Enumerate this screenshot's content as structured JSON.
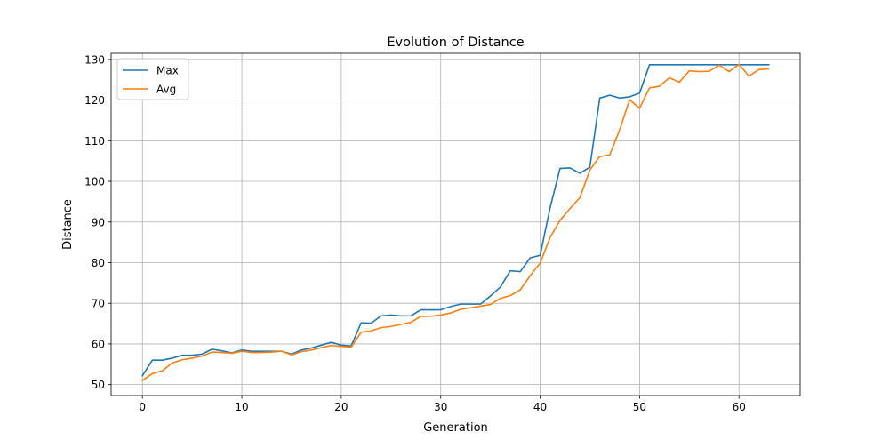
{
  "chart_data": {
    "type": "line",
    "title": "Evolution of Distance",
    "xlabel": "Generation",
    "ylabel": "Distance",
    "xlim": [
      -3.15,
      66.15
    ],
    "ylim": [
      47.3,
      131.5
    ],
    "xticks": [
      0,
      10,
      20,
      30,
      40,
      50,
      60
    ],
    "yticks": [
      50,
      60,
      70,
      80,
      90,
      100,
      110,
      120,
      130
    ],
    "grid": true,
    "legend_position": "top-left",
    "x": [
      0,
      1,
      2,
      3,
      4,
      5,
      6,
      7,
      8,
      9,
      10,
      11,
      12,
      13,
      14,
      15,
      16,
      17,
      18,
      19,
      20,
      21,
      22,
      23,
      24,
      25,
      26,
      27,
      28,
      29,
      30,
      31,
      32,
      33,
      34,
      35,
      36,
      37,
      38,
      39,
      40,
      41,
      42,
      43,
      44,
      45,
      46,
      47,
      48,
      49,
      50,
      51,
      52,
      53,
      54,
      55,
      56,
      57,
      58,
      59,
      60,
      61,
      62,
      63
    ],
    "series": [
      {
        "name": "Max",
        "color": "#1f77b4",
        "values": [
          52.2,
          56.0,
          56.0,
          56.5,
          57.2,
          57.2,
          57.5,
          58.7,
          58.3,
          57.8,
          58.5,
          58.2,
          58.2,
          58.2,
          58.2,
          57.5,
          58.5,
          59.0,
          59.7,
          60.4,
          59.7,
          59.5,
          65.2,
          65.1,
          66.9,
          67.1,
          66.9,
          66.9,
          68.4,
          68.4,
          68.4,
          69.2,
          69.8,
          69.8,
          69.8,
          71.8,
          74.0,
          78.0,
          77.8,
          81.2,
          81.8,
          93.5,
          103.2,
          103.3,
          102.0,
          103.5,
          120.5,
          121.2,
          120.5,
          120.8,
          121.7,
          128.7,
          128.7,
          128.7,
          128.7,
          128.7,
          128.7,
          128.7,
          128.7,
          128.7,
          128.7,
          128.7,
          128.7,
          128.7
        ]
      },
      {
        "name": "Avg",
        "color": "#ff7f0e",
        "values": [
          51.0,
          52.7,
          53.4,
          55.3,
          56.1,
          56.5,
          57.0,
          58.0,
          57.9,
          57.7,
          58.2,
          57.9,
          57.9,
          58.0,
          58.2,
          57.3,
          58.1,
          58.5,
          59.1,
          59.6,
          59.4,
          59.2,
          62.9,
          63.2,
          64.0,
          64.3,
          64.8,
          65.3,
          66.8,
          66.8,
          67.1,
          67.6,
          68.5,
          68.9,
          69.3,
          69.7,
          71.2,
          71.9,
          73.3,
          76.8,
          79.9,
          86.2,
          90.4,
          93.3,
          96.0,
          102.8,
          106.1,
          106.5,
          112.7,
          120.1,
          118.0,
          123.0,
          123.4,
          125.5,
          124.4,
          127.2,
          127.0,
          127.1,
          128.6,
          127.0,
          128.8,
          125.9,
          127.5,
          127.7
        ]
      }
    ]
  }
}
